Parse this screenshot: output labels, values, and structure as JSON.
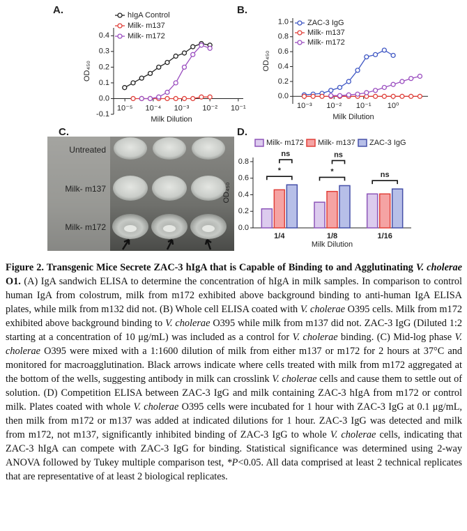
{
  "chart_data": [
    {
      "type": "line",
      "label": "A.",
      "xlabel": "Milk  Dilution",
      "ylabel": "OD₄₅₀",
      "log_x": true,
      "legend": "upper left",
      "x": [
        9.7656e-06,
        1.95313e-05,
        3.90625e-05,
        7.8125e-05,
        0.00015625,
        0.0003125,
        0.000625,
        0.00125,
        0.0025,
        0.005,
        0.01
      ],
      "xlim": [
        4e-06,
        0.15
      ],
      "xticks": [
        {
          "value": 1e-05,
          "label": "10⁻⁵"
        },
        {
          "value": 0.0001,
          "label": "10⁻⁴"
        },
        {
          "value": 0.001,
          "label": "10⁻³"
        },
        {
          "value": 0.01,
          "label": "10⁻²"
        },
        {
          "value": 0.1,
          "label": "10⁻¹"
        }
      ],
      "ylim": [
        -0.1,
        0.45
      ],
      "yticks": [
        -0.1,
        {
          "value": 0,
          "label": "0.0"
        },
        0.1,
        0.2,
        0.3,
        0.4
      ],
      "series": [
        {
          "name": "hIgA Control",
          "color": "#222222",
          "values": [
            0.07,
            0.1,
            0.13,
            0.16,
            0.2,
            0.23,
            0.27,
            0.29,
            0.33,
            0.35,
            0.34
          ]
        },
        {
          "name": "Milk- m137",
          "color": "#e0403a",
          "values": [
            null,
            0,
            0,
            0,
            0,
            0,
            0,
            0,
            0,
            0.01,
            0.01
          ]
        },
        {
          "name": "Milk- m172",
          "color": "#9b4fc0",
          "values": [
            null,
            null,
            0,
            0,
            0.01,
            0.04,
            0.1,
            0.2,
            0.28,
            0.34,
            0.32
          ]
        }
      ]
    },
    {
      "type": "line",
      "label": "B.",
      "xlabel": "Milk  Dilution",
      "ylabel": "OD₄₅₀",
      "log_x": true,
      "legend": "upper left",
      "x": [
        0.0009765625,
        0.001953125,
        0.00390625,
        0.0078125,
        0.015625,
        0.03125,
        0.0625,
        0.125,
        0.25,
        0.5,
        1,
        2,
        4,
        8
      ],
      "xlim": [
        0.0004,
        15
      ],
      "xticks": [
        {
          "value": 0.001,
          "label": "10⁻³"
        },
        {
          "value": 0.01,
          "label": "10⁻²"
        },
        {
          "value": 0.1,
          "label": "10⁻¹"
        },
        {
          "value": 1,
          "label": "10⁰"
        }
      ],
      "ylim": [
        -0.1,
        1.05
      ],
      "yticks": [
        {
          "value": 0,
          "label": "0.0"
        },
        0.2,
        0.4,
        0.6,
        0.8,
        {
          "value": 1,
          "label": "1.0"
        }
      ],
      "series": [
        {
          "name": "ZAC-3 IgG",
          "color": "#3f57c4",
          "values": [
            0.02,
            0.03,
            0.04,
            0.08,
            0.12,
            0.2,
            0.35,
            0.53,
            0.56,
            0.62,
            0.55,
            null,
            null,
            null
          ]
        },
        {
          "name": "Milk- m137",
          "color": "#e0403a",
          "values": [
            0,
            0,
            0,
            0,
            0,
            0,
            0,
            0,
            0,
            0,
            0,
            0,
            0,
            0
          ]
        },
        {
          "name": "Milk- m172",
          "color": "#9b4fc0",
          "values": [
            null,
            null,
            null,
            0.01,
            0.01,
            0.02,
            0.03,
            0.05,
            0.08,
            0.12,
            0.16,
            0.2,
            0.24,
            0.27
          ]
        }
      ]
    },
    {
      "type": "bar",
      "label": "D.",
      "xlabel": "Milk Dilution",
      "ylabel": "OD₄₅₀",
      "legend": "top",
      "categories": [
        "1/4",
        "1/8",
        "1/16"
      ],
      "ylim": [
        0,
        0.85
      ],
      "yticks": [
        {
          "value": 0,
          "label": "0.0"
        },
        0.2,
        0.4,
        0.6,
        0.8
      ],
      "series": [
        {
          "name": "Milk- m172",
          "color": "#dccbee",
          "edgecolor": "#8d55b8",
          "values": [
            0.23,
            0.31,
            0.41
          ]
        },
        {
          "name": "Milk- m137",
          "color": "#f5a3a3",
          "edgecolor": "#e0403a",
          "values": [
            0.46,
            0.44,
            0.41
          ]
        },
        {
          "name": "ZAC-3 IgG",
          "color": "#b7bfe8",
          "edgecolor": "#4650a8",
          "values": [
            0.52,
            0.51,
            0.47
          ]
        }
      ],
      "annotations": [
        {
          "text": "*",
          "category": 0,
          "series": [
            0,
            2
          ]
        },
        {
          "text": "ns",
          "category": 0,
          "series": [
            1,
            2
          ]
        },
        {
          "text": "*",
          "category": 1,
          "series": [
            0,
            2
          ]
        },
        {
          "text": "ns",
          "category": 1,
          "series": [
            1,
            2
          ]
        },
        {
          "text": "ns",
          "category": 2,
          "series": [
            0,
            2
          ]
        }
      ]
    }
  ],
  "photo": {
    "label": "C.",
    "rows": [
      "Untreated",
      "Milk- m137",
      "Milk- m172"
    ]
  },
  "caption": {
    "runs": [
      {
        "style": "b",
        "text": "Figure 2. Transgenic Mice Secrete ZAC-3 hIgA that is Capable of Binding to and Agglutinating "
      },
      {
        "style": "bi",
        "text": "V. cholerae"
      },
      {
        "style": "b",
        "text": " O1."
      },
      {
        "style": "n",
        "text": " (A) IgA sandwich ELISA to determine the concentration of hIgA in milk samples. In comparison to control human IgA from colostrum, milk from m172 exhibited above background binding to anti-human IgA ELISA plates, while milk from m132 did not. (B) Whole cell ELISA coated with "
      },
      {
        "style": "i",
        "text": "V. cholerae"
      },
      {
        "style": "n",
        "text": " O395 cells. Milk from m172 exhibited above background binding to "
      },
      {
        "style": "i",
        "text": "V. cholerae"
      },
      {
        "style": "n",
        "text": " O395 while milk from m137 did not. ZAC-3 IgG (Diluted 1:2 starting at a concentration of 10 μg/mL) was included as a control for "
      },
      {
        "style": "i",
        "text": "V. cholerae"
      },
      {
        "style": "n",
        "text": " binding. (C) Mid-log phase "
      },
      {
        "style": "i",
        "text": "V. cholerae"
      },
      {
        "style": "n",
        "text": " O395 were mixed with a 1:1600 dilution of milk from either m137 or m172 for 2 hours at 37°C and monitored for macroagglutination. Black arrows indicate where cells treated with milk from m172 aggregated at the bottom of the wells, suggesting antibody in milk can crosslink "
      },
      {
        "style": "i",
        "text": "V. cholerae"
      },
      {
        "style": "n",
        "text": " cells and cause them to settle out of solution. (D) Competition ELISA between ZAC-3 IgG and milk containing ZAC-3 hIgA from m172 or control milk. Plates coated with whole "
      },
      {
        "style": "i",
        "text": "V. cholerae"
      },
      {
        "style": "n",
        "text": " O395 cells were incubated for 1 hour with ZAC-3 IgG at 0.1 μg/mL, then milk from m172 or m137 was added at indicated dilutions for 1 hour. ZAC-3 IgG was detected and milk from m172, not m137, significantly inhibited binding of ZAC-3 IgG to whole "
      },
      {
        "style": "i",
        "text": "V. cholerae"
      },
      {
        "style": "n",
        "text": " cells, indicating that ZAC-3 hIgA can compete with ZAC-3 IgG for binding. Statistical significance was determined using 2-way ANOVA followed by Tukey multiple comparison test, "
      },
      {
        "style": "i",
        "text": "*P"
      },
      {
        "style": "n",
        "text": "<0.05. All data comprised at least 2 technical replicates that are representative of at least 2 biological replicates."
      }
    ]
  }
}
